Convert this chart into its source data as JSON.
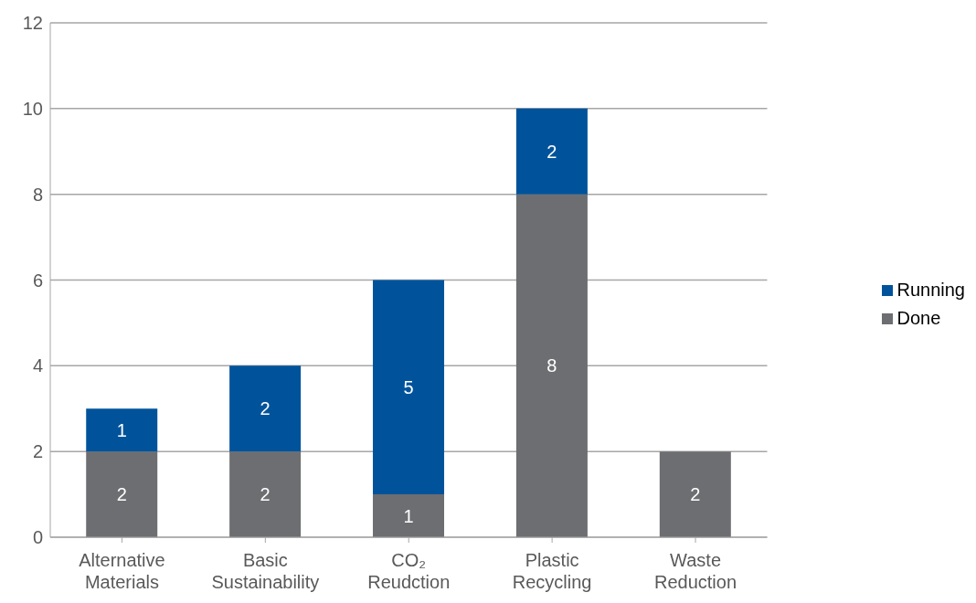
{
  "chart_data": {
    "type": "bar",
    "stacked": true,
    "categories": [
      "Alternative Materials",
      "Basic Sustainability",
      "CO₂ Reudction",
      "Plastic Recycling",
      "Waste Reduction"
    ],
    "series": [
      {
        "name": "Done",
        "color": "#6d6e71",
        "values": [
          2,
          2,
          1,
          8,
          2
        ]
      },
      {
        "name": "Running",
        "color": "#00539b",
        "values": [
          1,
          2,
          5,
          2,
          null
        ]
      }
    ],
    "ylim": [
      0,
      12
    ],
    "yticks": [
      0,
      2,
      4,
      6,
      8,
      10,
      12
    ],
    "grid": "y",
    "legend": "right",
    "data_labels": true
  }
}
